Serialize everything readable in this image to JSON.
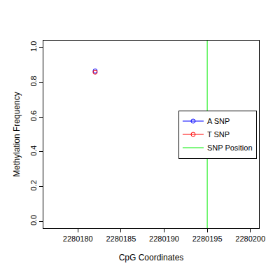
{
  "chart_data": {
    "type": "scatter",
    "x_label": "CpG Coordinates",
    "y_label": "Methylation Frequency",
    "xlim": [
      2280176,
      2280201
    ],
    "xticks": [
      2280180,
      2280185,
      2280190,
      2280195,
      2280200
    ],
    "ylim": [
      -0.04,
      1.04
    ],
    "yticks": [
      {
        "value": 0,
        "label": "0.0"
      },
      {
        "value": 0.2,
        "label": "0.2"
      },
      {
        "value": 0.4,
        "label": "0.4"
      },
      {
        "value": 0.6,
        "label": "0.6"
      },
      {
        "value": 0.8,
        "label": "0.8"
      },
      {
        "value": 1,
        "label": "1.0"
      }
    ],
    "legend": "right",
    "grid": false,
    "series": [
      {
        "name": "A SNP",
        "color": "#0000ff",
        "marker": "circle-open",
        "x": [
          2280182
        ],
        "values": [
          0.865
        ]
      },
      {
        "name": "T SNP",
        "color": "#ff0000",
        "marker": "circle-open",
        "x": [
          2280182
        ],
        "values": [
          0.858
        ]
      },
      {
        "name": "SNP Position",
        "color": "#00ee00",
        "type": "vline",
        "x": [
          2280195
        ]
      }
    ]
  }
}
